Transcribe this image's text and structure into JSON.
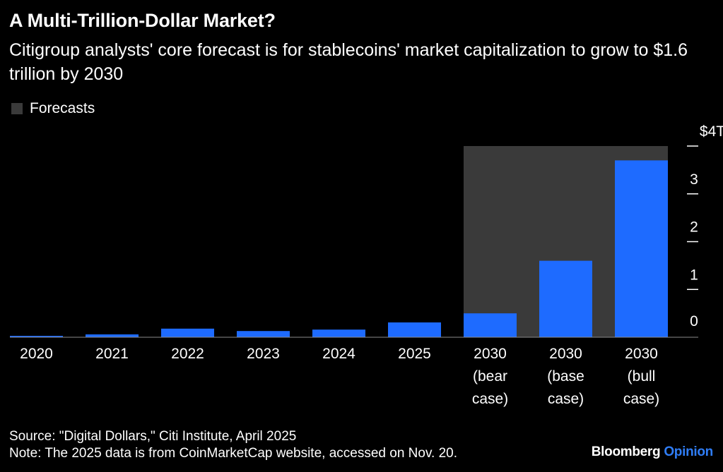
{
  "header": {
    "title": "A Multi-Trillion-Dollar Market?",
    "subtitle": "Citigroup analysts' core forecast is for stablecoins' market capitalization to grow to $1.6 trillion by 2030"
  },
  "legend": {
    "label": "Forecasts",
    "color": "#3a3a3a"
  },
  "colors": {
    "bar": "#1e6bff",
    "background": "#000000",
    "text": "#ffffff",
    "forecast_band": "#3a3a3a"
  },
  "chart_data": {
    "type": "bar",
    "title": "A Multi-Trillion-Dollar Market?",
    "subtitle": "Citigroup analysts' core forecast is for stablecoins' market capitalization to grow to $1.6 trillion by 2030",
    "categories": [
      [
        "2020"
      ],
      [
        "2021"
      ],
      [
        "2022"
      ],
      [
        "2023"
      ],
      [
        "2024"
      ],
      [
        "2025"
      ],
      [
        "2030",
        "(bear",
        "case)"
      ],
      [
        "2030",
        "(base",
        "case)"
      ],
      [
        "2030",
        "(bull",
        "case)"
      ]
    ],
    "values": [
      0.02,
      0.06,
      0.18,
      0.13,
      0.16,
      0.31,
      0.5,
      1.6,
      3.7
    ],
    "unit": "trillion USD",
    "forecast_start_index": 6,
    "ylim": [
      0,
      4
    ],
    "yticks": [
      0,
      1,
      2,
      3,
      4
    ],
    "ytick_labels": [
      "0",
      "1",
      "2",
      "3",
      "$4T"
    ],
    "y_axis_side": "right",
    "grid": false,
    "legend_position": "top-left"
  },
  "footer": {
    "source": "Source: \"Digital Dollars,\" Citi Institute, April 2025",
    "note": "Note: The 2025 data is from CoinMarketCap website, accessed on Nov. 20."
  },
  "brand": {
    "name": "Bloomberg",
    "section": "Opinion"
  }
}
